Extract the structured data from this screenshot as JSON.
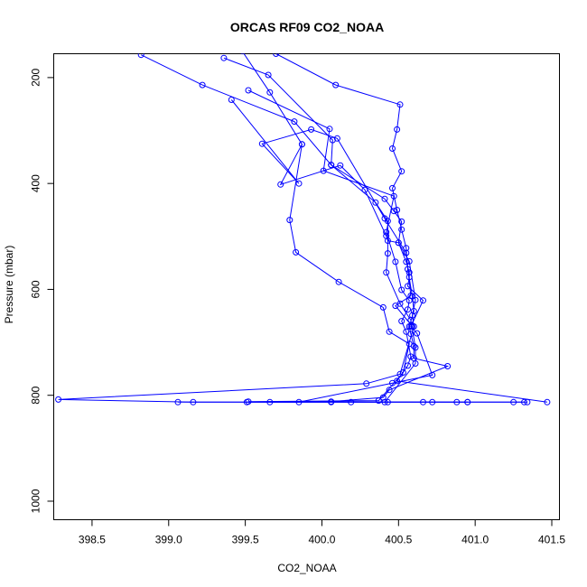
{
  "chart_data": {
    "type": "line",
    "title": "ORCAS RF09 CO2_NOAA",
    "xlabel": "CO2_NOAA",
    "ylabel": "Pressure (mbar)",
    "xlim": [
      398.25,
      401.55
    ],
    "ylim": [
      1035,
      155
    ],
    "y_reversed": true,
    "xticks": [
      398.5,
      399.0,
      399.5,
      400.0,
      400.5,
      401.0,
      401.5
    ],
    "xtick_labels": [
      "398.5",
      "399.0",
      "399.5",
      "400.0",
      "400.5",
      "401.0",
      "401.5"
    ],
    "yticks": [
      200,
      400,
      600,
      800,
      1000
    ],
    "ytick_labels": [
      "200",
      "400",
      "600",
      "800",
      "1000"
    ],
    "grid": false,
    "legend": "none",
    "colors": {
      "series": "#0000ff",
      "axes": "#000000",
      "background": "#ffffff"
    },
    "series": [
      {
        "points": [
          [
            399.7,
            155
          ],
          [
            400.09,
            214
          ],
          [
            400.51,
            251
          ],
          [
            400.49,
            298
          ],
          [
            400.46,
            334
          ],
          [
            400.52,
            377
          ],
          [
            400.46,
            409
          ],
          [
            400.49,
            450
          ],
          [
            400.52,
            487
          ],
          [
            400.55,
            522
          ],
          [
            400.56,
            562
          ],
          [
            400.59,
            613
          ],
          [
            400.6,
            641
          ],
          [
            400.57,
            670
          ],
          [
            400.58,
            684
          ],
          [
            400.6,
            707
          ],
          [
            400.6,
            730
          ],
          [
            400.82,
            745
          ],
          [
            400.44,
            790
          ],
          [
            400.4,
            804
          ],
          [
            400.06,
            812
          ],
          [
            400.43,
            813
          ],
          [
            400.72,
            813
          ],
          [
            401.34,
            813
          ]
        ]
      },
      {
        "points": [
          [
            398.82,
            157
          ],
          [
            399.22,
            214
          ],
          [
            399.82,
            283
          ],
          [
            400.06,
            365
          ],
          [
            400.35,
            436
          ],
          [
            400.43,
            471
          ],
          [
            400.43,
            532
          ],
          [
            400.42,
            568
          ],
          [
            400.51,
            627
          ],
          [
            400.58,
            658
          ],
          [
            400.61,
            710
          ],
          [
            400.61,
            740
          ],
          [
            400.41,
            813
          ],
          [
            400.06,
            813
          ],
          [
            399.66,
            813
          ]
        ]
      },
      {
        "points": [
          [
            399.36,
            163
          ],
          [
            399.65,
            195
          ],
          [
            400.07,
            318
          ],
          [
            400.06,
            365
          ],
          [
            400.41,
            429
          ],
          [
            400.47,
            452
          ],
          [
            400.52,
            472
          ],
          [
            400.5,
            512
          ],
          [
            400.55,
            548
          ],
          [
            400.57,
            568
          ],
          [
            400.57,
            577
          ],
          [
            400.56,
            594
          ],
          [
            400.66,
            621
          ],
          [
            400.58,
            670
          ],
          [
            400.62,
            683
          ],
          [
            400.72,
            762
          ],
          [
            400.46,
            777
          ],
          [
            399.85,
            813
          ],
          [
            399.06,
            813
          ]
        ]
      },
      {
        "points": [
          [
            399.48,
            150
          ],
          [
            399.66,
            228
          ],
          [
            399.87,
            326
          ],
          [
            399.73,
            402
          ],
          [
            400.12,
            366
          ],
          [
            400.28,
            412
          ],
          [
            400.42,
            499
          ],
          [
            400.43,
            508
          ],
          [
            400.5,
            512
          ],
          [
            400.57,
            547
          ],
          [
            400.61,
            620
          ],
          [
            400.59,
            649
          ],
          [
            400.6,
            670
          ],
          [
            400.51,
            760
          ],
          [
            400.29,
            778
          ],
          [
            398.28,
            808
          ],
          [
            399.16,
            813
          ],
          [
            400.95,
            813
          ]
        ]
      },
      {
        "points": [
          [
            399.52,
            224
          ],
          [
            400.05,
            297
          ],
          [
            400.01,
            376
          ],
          [
            400.47,
            424
          ],
          [
            400.42,
            492
          ],
          [
            400.48,
            548
          ],
          [
            400.52,
            601
          ],
          [
            400.57,
            621
          ],
          [
            400.56,
            638
          ],
          [
            400.52,
            660
          ],
          [
            400.55,
            680
          ],
          [
            400.58,
            727
          ],
          [
            400.56,
            744
          ],
          [
            400.49,
            773
          ],
          [
            401.47,
            813
          ]
        ]
      },
      {
        "points": [
          [
            399.41,
            242
          ],
          [
            399.85,
            400
          ],
          [
            399.61,
            325
          ],
          [
            399.93,
            298
          ],
          [
            400.1,
            315
          ],
          [
            400.41,
            466
          ],
          [
            400.55,
            531
          ],
          [
            400.58,
            612
          ],
          [
            400.48,
            631
          ],
          [
            400.59,
            670
          ]
        ]
      },
      {
        "points": [
          [
            399.87,
            326
          ],
          [
            399.79,
            469
          ],
          [
            399.83,
            530
          ],
          [
            400.11,
            586
          ],
          [
            400.4,
            634
          ],
          [
            400.44,
            680
          ],
          [
            400.57,
            703
          ],
          [
            400.53,
            757
          ],
          [
            400.37,
            810
          ],
          [
            399.52,
            812
          ],
          [
            400.88,
            813
          ],
          [
            401.25,
            813
          ],
          [
            400.66,
            813
          ],
          [
            400.19,
            813
          ],
          [
            399.51,
            813
          ],
          [
            400.95,
            813
          ],
          [
            401.32,
            813
          ]
        ]
      }
    ]
  }
}
